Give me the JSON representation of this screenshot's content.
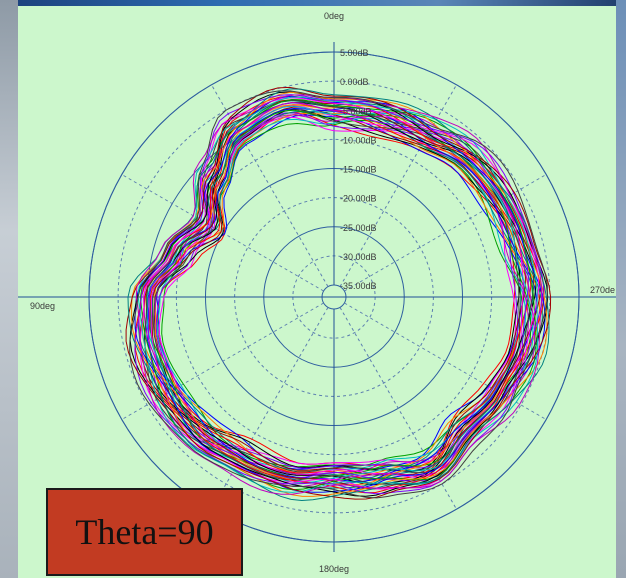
{
  "chart_data": {
    "type": "polar",
    "radial_ticks": [
      "5.00dB",
      "0.00dB",
      "-5.00dB",
      "-10.00dB",
      "-15.00dB",
      "-20.00dB",
      "-25.00dB",
      "-30.00dB",
      "-35.00dB"
    ],
    "radial_tick_values": [
      5,
      0,
      -5,
      -10,
      -15,
      -20,
      -25,
      -30,
      -35
    ],
    "angle_labels": {
      "top": "0deg",
      "left": "90deg",
      "right": "270de",
      "bottom": "180deg"
    },
    "angle_direction": "counter-clockwise",
    "grid": true,
    "angular_grid_step_deg": 30,
    "series_count": 36,
    "series_colors": [
      "#ff0000",
      "#0000ff",
      "#00a000",
      "#ff00ff",
      "#000000",
      "#ff8000",
      "#00c0c0",
      "#8000ff",
      "#a00000",
      "#008080",
      "#c000c0",
      "#404040"
    ],
    "envelope_db": {
      "angles_deg": [
        0,
        15,
        30,
        45,
        60,
        75,
        90,
        105,
        120,
        135,
        150,
        165,
        180,
        195,
        210,
        225,
        240,
        255,
        270,
        285,
        300,
        315,
        330,
        345
      ],
      "mean": [
        -5,
        -3,
        -4,
        -8,
        -12,
        -9,
        -5,
        -4,
        -4,
        -4,
        -5,
        -5,
        -6,
        -5,
        -3,
        -5,
        -4,
        -3,
        -3,
        -4,
        -4,
        -4,
        -5,
        -5
      ]
    },
    "annotation": "Theta=90"
  }
}
